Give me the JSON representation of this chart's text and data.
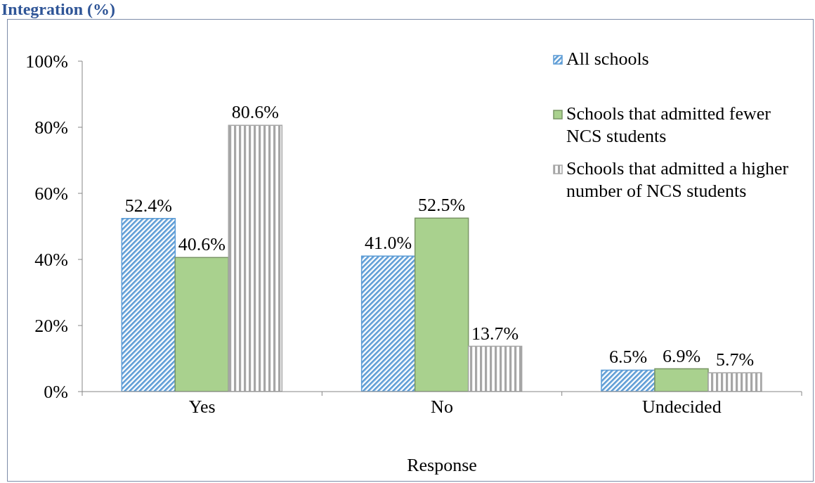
{
  "chart_data": {
    "type": "bar",
    "title": "Integration (%)",
    "xlabel": "Response",
    "categories": [
      "Yes",
      "No",
      "Undecided"
    ],
    "series": [
      {
        "name": "All schools",
        "color": "#5b9bd5",
        "values": [
          52.4,
          41.0,
          6.5
        ],
        "value_labels": [
          "52.4%",
          "41.0%",
          "6.5%"
        ]
      },
      {
        "name": "Schools that admitted fewer NCS students",
        "color": "#a9d18e",
        "values": [
          40.6,
          52.5,
          6.9
        ],
        "value_labels": [
          "40.6%",
          "52.5%",
          "6.9%"
        ]
      },
      {
        "name": "Schools that admitted a higher number of NCS students",
        "color": "#a6a6a6",
        "values": [
          80.6,
          13.7,
          5.7
        ],
        "value_labels": [
          "80.6%",
          "13.7%",
          "5.7%"
        ]
      }
    ],
    "ylim": [
      0,
      100
    ],
    "yticks": [
      {
        "value": 0,
        "label": "0%"
      },
      {
        "value": 20,
        "label": "20%"
      },
      {
        "value": 40,
        "label": "40%"
      },
      {
        "value": 60,
        "label": "60%"
      },
      {
        "value": 80,
        "label": "80%"
      },
      {
        "value": 100,
        "label": "100%"
      }
    ],
    "legend": "top right"
  }
}
